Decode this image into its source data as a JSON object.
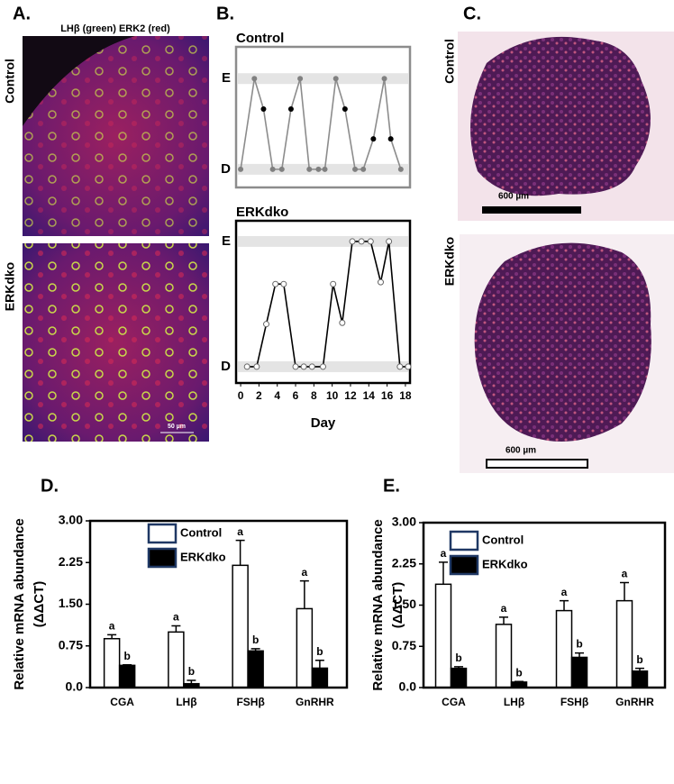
{
  "chart_data": [
    {
      "type": "line",
      "panel_label": "B.",
      "title": "Control",
      "xlim": [
        -0.5,
        18.5
      ],
      "ylim": [
        -0.4,
        2.7
      ],
      "yticks": [
        {
          "value": 0,
          "label": "D"
        },
        {
          "value": 2,
          "label": "E"
        }
      ],
      "series": [
        {
          "color": "#8c8c8c",
          "x": [
            0,
            1.5,
            2.5,
            3.5,
            4.5,
            5.5,
            6.5,
            7.5,
            8.5,
            9.2,
            10.4,
            11.4,
            12.5,
            13.4,
            14.5,
            15.7,
            16.4,
            17.5
          ],
          "values": [
            0,
            2,
            1.33,
            0,
            0,
            1.33,
            2,
            0,
            0,
            0,
            2,
            1.33,
            0,
            0,
            0.67,
            2,
            0.67,
            0
          ],
          "marker_colors": [
            "#808080",
            "#808080",
            "#000000",
            "#808080",
            "#808080",
            "#000000",
            "#808080",
            "#808080",
            "#808080",
            "#808080",
            "#808080",
            "#000000",
            "#808080",
            "#808080",
            "#000000",
            "#808080",
            "#000000",
            "#808080"
          ]
        }
      ]
    },
    {
      "type": "line",
      "title": "ERKdko",
      "x_label": "Day",
      "xlim": [
        -0.5,
        18.5
      ],
      "ylim": [
        -0.26,
        2.33
      ],
      "xticks": [
        0,
        2,
        4,
        6,
        8,
        10,
        12,
        14,
        16,
        18
      ],
      "yticks": [
        {
          "value": 0,
          "label": "D"
        },
        {
          "value": 2,
          "label": "E"
        }
      ],
      "series": [
        {
          "color": "#000000",
          "x": [
            0.7,
            1.75,
            2.8,
            3.8,
            4.7,
            6,
            6.9,
            7.8,
            9,
            10.1,
            11.1,
            12.2,
            13.2,
            14.2,
            15.3,
            16.2,
            17.4,
            18.3
          ],
          "values": [
            0,
            0,
            0.68,
            1.32,
            1.32,
            0,
            0,
            0,
            0,
            1.32,
            0.7,
            2,
            2,
            2,
            1.35,
            2,
            0,
            0
          ],
          "marker_colors": [
            "#ffffff",
            "#ffffff",
            "#ffffff",
            "#ffffff",
            "#ffffff",
            "#ffffff",
            "#ffffff",
            "#ffffff",
            "#ffffff",
            "#ffffff",
            "#ffffff",
            "#ffffff",
            "#ffffff",
            "#ffffff",
            "#ffffff",
            "#ffffff",
            "#ffffff",
            "#ffffff"
          ]
        }
      ]
    },
    {
      "type": "bar",
      "panel_label": "D.",
      "y_label": [
        "Relative mRNA abundance",
        "(ΔΔCT)"
      ],
      "categories": [
        "CGA",
        "LHβ",
        "FSHβ",
        "GnRHR"
      ],
      "ylim": [
        0,
        3
      ],
      "yticks": [
        {
          "value": 0,
          "label": "0.0"
        },
        0.75,
        {
          "value": 1.5,
          "label": "1.50"
        },
        2.25,
        {
          "value": 3,
          "label": "3.00"
        }
      ],
      "series": [
        {
          "name": "Control",
          "color": "#ffffff",
          "values": [
            0.88,
            1.0,
            2.2,
            1.42
          ],
          "errors": [
            0.07,
            0.11,
            0.45,
            0.5
          ],
          "letters": [
            "a",
            "a",
            "a",
            "a"
          ]
        },
        {
          "name": "ERKdko",
          "color": "#000000",
          "values": [
            0.4,
            0.07,
            0.66,
            0.35
          ],
          "errors": [
            0.01,
            0.06,
            0.04,
            0.14
          ],
          "letters": [
            "b",
            "b",
            "b",
            "b"
          ]
        }
      ]
    },
    {
      "type": "bar",
      "panel_label": "E.",
      "y_label": [
        "Relative mRNA abundance",
        "(ΔΔCT)"
      ],
      "categories": [
        "CGA",
        "LHβ",
        "FSHβ",
        "GnRHR"
      ],
      "ylim": [
        0,
        3
      ],
      "yticks": [
        {
          "value": 0,
          "label": "0.0"
        },
        0.75,
        {
          "value": 1.5,
          "label": "1.50"
        },
        2.25,
        {
          "value": 3,
          "label": "3.00"
        }
      ],
      "series": [
        {
          "name": "Control",
          "color": "#ffffff",
          "values": [
            1.88,
            1.15,
            1.4,
            1.58
          ],
          "errors": [
            0.4,
            0.13,
            0.18,
            0.33
          ],
          "letters": [
            "a",
            "a",
            "a",
            "a"
          ]
        },
        {
          "name": "ERKdko",
          "color": "#000000",
          "values": [
            0.35,
            0.1,
            0.55,
            0.3
          ],
          "errors": [
            0.03,
            0.01,
            0.08,
            0.05
          ],
          "letters": [
            "b",
            "b",
            "b",
            "b"
          ]
        }
      ]
    }
  ],
  "images": [
    {
      "label": "A.",
      "title": "LHβ (green) ERK2 (red)",
      "rows": [
        "Control",
        "ERKdko"
      ],
      "scale_bar": "50 µm"
    },
    {
      "label": "C.",
      "rows": [
        "Control",
        "ERKdko"
      ],
      "scale_bars": [
        "600 µm",
        "600 µm"
      ]
    }
  ]
}
